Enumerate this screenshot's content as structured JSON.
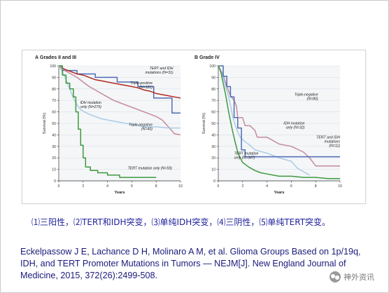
{
  "caption": "⑴三阳性，⑵TERT和IDH突变，⑶单纯IDH突变，⑷三阴性，⑸单纯TERT突变。",
  "citation": "Eckelpassow J E, Lachance D H, Molinaro A M, et al. Glioma Groups Based on 1p/19q, IDH, and TERT Promoter Mutations in Tumors — NEJM[J]. New England Journal of Medicine, 2015, 372(26):2499-508.",
  "watermark": "神外资讯",
  "chart_data": [
    {
      "type": "line",
      "panel_letter": "A",
      "title": "Grades II and III",
      "xlabel": "Years",
      "ylabel": "Survival (%)",
      "xlim": [
        0,
        10
      ],
      "ylim": [
        0,
        100
      ],
      "xticks": [
        0,
        2,
        4,
        6,
        8,
        10
      ],
      "yticks": [
        0,
        10,
        20,
        30,
        40,
        50,
        60,
        70,
        80,
        90,
        100
      ],
      "series": [
        {
          "name": "TERT and IDH mutations (N=31)",
          "label_lines": [
            "TERT and IDH",
            "mutations (N=31)"
          ],
          "color": "#4f6cb5",
          "x": [
            0,
            0.3,
            0.3,
            1.5,
            1.5,
            3.0,
            3.0,
            4.8,
            4.8,
            6.5,
            6.5,
            7.8,
            7.8,
            9.3,
            9.3,
            10
          ],
          "y": [
            100,
            100,
            96,
            96,
            93,
            93,
            90,
            90,
            86,
            86,
            82,
            82,
            72,
            72,
            59,
            59
          ]
        },
        {
          "name": "Triple-positive (N=181)",
          "label_lines": [
            "Triple-positive",
            "(N=181)"
          ],
          "color": "#b22a1f",
          "x": [
            0,
            0.5,
            1.0,
            1.5,
            2.0,
            2.5,
            3.0,
            3.5,
            4.0,
            4.5,
            5.0,
            5.5,
            6.0,
            6.5,
            7.0,
            7.5,
            8.0,
            8.5,
            9.0,
            9.5,
            10
          ],
          "y": [
            100,
            97,
            95,
            93,
            92,
            90,
            88,
            87,
            86,
            85,
            84,
            83,
            82,
            81,
            79,
            78,
            76,
            75,
            74,
            73,
            72
          ]
        },
        {
          "name": "IDH mutation only (N=275)",
          "label_lines": [
            "IDH mutation",
            "only (N=275)"
          ],
          "color": "#c58a9c",
          "x": [
            0,
            0.5,
            1.0,
            1.5,
            2.0,
            2.5,
            3.0,
            3.5,
            4.0,
            4.5,
            5.0,
            5.5,
            6.0,
            6.5,
            7.0,
            7.5,
            8.0,
            8.5,
            9.0,
            9.5,
            10
          ],
          "y": [
            100,
            96,
            93,
            90,
            86,
            82,
            79,
            76,
            73,
            70,
            68,
            66,
            64,
            62,
            60,
            58,
            56,
            53,
            47,
            41,
            40
          ]
        },
        {
          "name": "Triple-negative (N=40)",
          "label_lines": [
            "Triple-negative",
            "(N=40)"
          ],
          "color": "#a9cbe6",
          "x": [
            0,
            0.3,
            0.6,
            0.9,
            1.2,
            1.5,
            1.8,
            2.1,
            2.5,
            3.0,
            3.5,
            4.0,
            4.5,
            5.0,
            5.5,
            6.0,
            6.5,
            7.0,
            8.0,
            9.0,
            10
          ],
          "y": [
            100,
            95,
            88,
            80,
            72,
            66,
            62,
            60,
            58,
            56,
            54,
            53,
            52,
            51,
            50,
            49,
            48,
            47,
            47,
            46,
            46
          ]
        },
        {
          "name": "TERT mutation only (N=59)",
          "label_lines": [
            "TERT mutation only (N=59)"
          ],
          "color": "#3e9a3e",
          "x": [
            0,
            0.3,
            0.3,
            0.6,
            0.6,
            0.9,
            0.9,
            1.2,
            1.2,
            1.4,
            1.4,
            1.6,
            1.6,
            1.8,
            1.8,
            2.0,
            2.0,
            2.2,
            2.2,
            2.6,
            2.6,
            3.2,
            3.2,
            4.0,
            4.0,
            5.0,
            5.0,
            8.0
          ],
          "y": [
            100,
            100,
            92,
            92,
            85,
            85,
            80,
            80,
            73,
            73,
            60,
            60,
            45,
            45,
            31,
            31,
            20,
            20,
            12,
            12,
            9,
            9,
            7,
            7,
            5,
            5,
            3,
            3
          ]
        }
      ]
    },
    {
      "type": "line",
      "panel_letter": "B",
      "title": "Grade IV",
      "xlabel": "Years",
      "ylabel": "Survival (%)",
      "xlim": [
        0,
        10
      ],
      "ylim": [
        0,
        100
      ],
      "xticks": [
        0,
        2,
        4,
        6,
        8,
        10
      ],
      "yticks": [
        0,
        10,
        20,
        30,
        40,
        50,
        60,
        70,
        80,
        90,
        100
      ],
      "series": [
        {
          "name": "Triple-negative (N=80)",
          "label_lines": [
            "Triple-negative",
            "(N=80)"
          ],
          "color": "#c58a9c",
          "x": [
            0,
            0.4,
            0.7,
            1.0,
            1.3,
            1.5,
            1.6,
            2.0,
            2.2,
            2.6,
            3.0,
            3.2,
            4.0,
            5.0,
            6.0,
            7.0,
            7.5,
            8.0,
            9.0,
            10
          ],
          "y": [
            100,
            92,
            82,
            74,
            70,
            65,
            55,
            55,
            48,
            48,
            44,
            38,
            38,
            32,
            30,
            25,
            20,
            13,
            13,
            13
          ]
        },
        {
          "name": "IDH mutation only (N=32)",
          "label_lines": [
            "IDH mutation",
            "only (N=32)"
          ],
          "color": "#a9cbe6",
          "x": [
            0,
            0.4,
            0.8,
            1.0,
            1.2,
            1.5,
            1.8,
            2.2,
            2.6,
            3.0,
            4.0,
            5.0,
            6.0,
            6.5,
            7.0,
            7.5
          ],
          "y": [
            100,
            90,
            75,
            66,
            55,
            45,
            38,
            34,
            31,
            27,
            24,
            20,
            17,
            11,
            8,
            5
          ]
        },
        {
          "name": "TERT and IDH mutations (N=11)",
          "label_lines": [
            "TERT and IDH",
            "mutations",
            "(N=11)"
          ],
          "color": "#4f6cb5",
          "x": [
            0,
            0.4,
            0.4,
            0.7,
            0.7,
            1.0,
            1.0,
            1.3,
            1.3,
            1.6,
            1.6,
            1.9,
            1.9,
            2.2,
            2.2,
            10
          ],
          "y": [
            100,
            100,
            91,
            91,
            82,
            82,
            73,
            73,
            55,
            55,
            46,
            46,
            27,
            27,
            21,
            21
          ]
        },
        {
          "name": "TERT mutation only (N=347)",
          "label_lines": [
            "TERT mutation",
            "only (N=347)"
          ],
          "color": "#3e9a3e",
          "x": [
            0,
            0.2,
            0.4,
            0.6,
            0.8,
            1.0,
            1.2,
            1.4,
            1.6,
            1.8,
            2.0,
            2.5,
            3.0,
            3.5,
            4.0,
            5.0,
            6.0,
            7.0,
            8.0,
            9.0,
            10
          ],
          "y": [
            100,
            95,
            85,
            75,
            63,
            52,
            42,
            33,
            25,
            20,
            16,
            12,
            9,
            7,
            6,
            4,
            4,
            3,
            3,
            2,
            2
          ]
        }
      ]
    }
  ]
}
